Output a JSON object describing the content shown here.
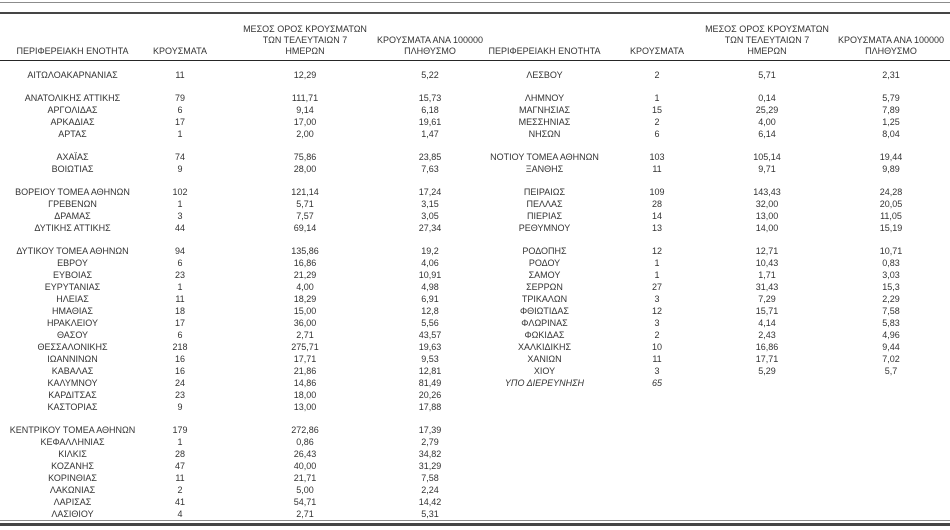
{
  "colors": {
    "text": "#333333",
    "rule_dark": "#454545",
    "rule_light": "#8c8c8c",
    "header_underline": "#262626",
    "background": "#ffffff"
  },
  "columns": {
    "region": "ΠΕΡΙΦΕΡΕΙΑΚΗ ΕΝΟΤΗΤΑ",
    "cases": "ΚΡΟΥΣΜΑΤΑ",
    "avg7": "ΜΕΣΟΣ ΟΡΟΣ ΚΡΟΥΣΜΑΤΩΝ\nΤΩΝ ΤΕΛΕΥΤΑΙΩΝ 7\nΗΜΕΡΩΝ",
    "per100k": "ΚΡΟΥΣΜΑΤΑ ΑΝΑ 100000\nΠΛΗΘΥΣΜΟ"
  },
  "groups": [
    {
      "left": [
        [
          "ΑΙΤΩΛΟΑΚΑΡΝΑΝΙΑΣ",
          "11",
          "12,29",
          "5,22"
        ]
      ],
      "right": [
        [
          "ΛΕΣΒΟΥ",
          "2",
          "5,71",
          "2,31"
        ]
      ]
    },
    {
      "left": [
        [
          "ΑΝΑΤΟΛΙΚΗΣ ΑΤΤΙΚΗΣ",
          "79",
          "111,71",
          "15,73"
        ],
        [
          "ΑΡΓΟΛΙΔΑΣ",
          "6",
          "9,14",
          "6,18"
        ],
        [
          "ΑΡΚΑΔΙΑΣ",
          "17",
          "17,00",
          "19,61"
        ],
        [
          "ΑΡΤΑΣ",
          "1",
          "2,00",
          "1,47"
        ]
      ],
      "right": [
        [
          "ΛΗΜΝΟΥ",
          "1",
          "0,14",
          "5,79"
        ],
        [
          "ΜΑΓΝΗΣΙΑΣ",
          "15",
          "25,29",
          "7,89"
        ],
        [
          "ΜΕΣΣΗΝΙΑΣ",
          "2",
          "4,00",
          "1,25"
        ],
        [
          "ΝΗΣΩΝ",
          "6",
          "6,14",
          "8,04"
        ]
      ]
    },
    {
      "left": [
        [
          "ΑΧΑΪΑΣ",
          "74",
          "75,86",
          "23,85"
        ],
        [
          "ΒΟΙΩΤΙΑΣ",
          "9",
          "28,00",
          "7,63"
        ]
      ],
      "right": [
        [
          "ΝΟΤΙΟΥ ΤΟΜΕΑ ΑΘΗΝΩΝ",
          "103",
          "105,14",
          "19,44"
        ],
        [
          "ΞΑΝΘΗΣ",
          "11",
          "9,71",
          "9,89"
        ]
      ]
    },
    {
      "left": [
        [
          "ΒΟΡΕΙΟΥ ΤΟΜΕΑ ΑΘΗΝΩΝ",
          "102",
          "121,14",
          "17,24"
        ],
        [
          "ΓΡΕΒΕΝΩΝ",
          "1",
          "5,71",
          "3,15"
        ],
        [
          "ΔΡΑΜΑΣ",
          "3",
          "7,57",
          "3,05"
        ],
        [
          "ΔΥΤΙΚΗΣ ΑΤΤΙΚΗΣ",
          "44",
          "69,14",
          "27,34"
        ]
      ],
      "right": [
        [
          "ΠΕΙΡΑΙΩΣ",
          "109",
          "143,43",
          "24,28"
        ],
        [
          "ΠΕΛΛΑΣ",
          "28",
          "32,00",
          "20,05"
        ],
        [
          "ΠΙΕΡΙΑΣ",
          "14",
          "13,00",
          "11,05"
        ],
        [
          "ΡΕΘΥΜΝΟΥ",
          "13",
          "14,00",
          "15,19"
        ]
      ]
    },
    {
      "left": [
        [
          "ΔΥΤΙΚΟΥ ΤΟΜΕΑ ΑΘΗΝΩΝ",
          "94",
          "135,86",
          "19,2"
        ],
        [
          "ΕΒΡΟΥ",
          "6",
          "16,86",
          "4,06"
        ],
        [
          "ΕΥΒΟΙΑΣ",
          "23",
          "21,29",
          "10,91"
        ],
        [
          "ΕΥΡΥΤΑΝΙΑΣ",
          "1",
          "4,00",
          "4,98"
        ],
        [
          "ΗΛΕΙΑΣ",
          "11",
          "18,29",
          "6,91"
        ],
        [
          "ΗΜΑΘΙΑΣ",
          "18",
          "15,00",
          "12,8"
        ],
        [
          "ΗΡΑΚΛΕΙΟΥ",
          "17",
          "36,00",
          "5,56"
        ],
        [
          "ΘΑΣΟΥ",
          "6",
          "2,71",
          "43,57"
        ],
        [
          "ΘΕΣΣΑΛΟΝΙΚΗΣ",
          "218",
          "275,71",
          "19,63"
        ],
        [
          "ΙΩΑΝΝΙΝΩΝ",
          "16",
          "17,71",
          "9,53"
        ],
        [
          "ΚΑΒΑΛΑΣ",
          "16",
          "21,86",
          "12,81"
        ],
        [
          "ΚΑΛΥΜΝΟΥ",
          "24",
          "14,86",
          "81,49"
        ],
        [
          "ΚΑΡΔΙΤΣΑΣ",
          "23",
          "18,00",
          "20,26"
        ],
        [
          "ΚΑΣΤΟΡΙΑΣ",
          "9",
          "13,00",
          "17,88"
        ]
      ],
      "right": [
        [
          "ΡΟΔΟΠΗΣ",
          "12",
          "12,71",
          "10,71"
        ],
        [
          "ΡΟΔΟΥ",
          "1",
          "10,43",
          "0,83"
        ],
        [
          "ΣΑΜΟΥ",
          "1",
          "1,71",
          "3,03"
        ],
        [
          "ΣΕΡΡΩΝ",
          "27",
          "31,43",
          "15,3"
        ],
        [
          "ΤΡΙΚΑΛΩΝ",
          "3",
          "7,29",
          "2,29"
        ],
        [
          "ΦΘΙΩΤΙΔΑΣ",
          "12",
          "15,71",
          "7,58"
        ],
        [
          "ΦΛΩΡΙΝΑΣ",
          "3",
          "4,14",
          "5,83"
        ],
        [
          "ΦΩΚΙΔΑΣ",
          "2",
          "2,43",
          "4,96"
        ],
        [
          "ΧΑΛΚΙΔΙΚΗΣ",
          "10",
          "16,86",
          "9,44"
        ],
        [
          "ΧΑΝΙΩΝ",
          "11",
          "17,71",
          "7,02"
        ],
        [
          "ΧΙΟΥ",
          "3",
          "5,29",
          "5,7"
        ],
        [
          "ΥΠΟ ΔΙΕΡΕΥΝΗΣΗ",
          "65",
          "",
          "",
          true
        ]
      ]
    },
    {
      "left": [
        [
          "ΚΕΝΤΡΙΚΟΥ ΤΟΜΕΑ ΑΘΗΝΩΝ",
          "179",
          "272,86",
          "17,39"
        ],
        [
          "ΚΕΦΑΛΛΗΝΙΑΣ",
          "1",
          "0,86",
          "2,79"
        ],
        [
          "ΚΙΛΚΙΣ",
          "28",
          "26,43",
          "34,82"
        ],
        [
          "ΚΟΖΑΝΗΣ",
          "47",
          "40,00",
          "31,29"
        ],
        [
          "ΚΟΡΙΝΘΙΑΣ",
          "11",
          "21,71",
          "7,58"
        ],
        [
          "ΛΑΚΩΝΙΑΣ",
          "2",
          "5,00",
          "2,24"
        ],
        [
          "ΛΑΡΙΣΑΣ",
          "41",
          "54,71",
          "14,42"
        ],
        [
          "ΛΑΣΙΘΙΟΥ",
          "4",
          "2,71",
          "5,31"
        ]
      ],
      "right": []
    }
  ]
}
